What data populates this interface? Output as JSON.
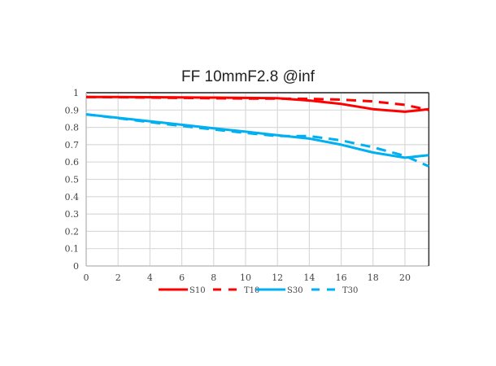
{
  "chart_data": {
    "type": "line",
    "title": "FF 10mmF2.8 @inf",
    "xlabel": "",
    "ylabel": "",
    "xlim": [
      0,
      21.5
    ],
    "ylim": [
      0,
      1
    ],
    "xticks": [
      0,
      2,
      4,
      6,
      8,
      10,
      12,
      14,
      16,
      18,
      20
    ],
    "yticks": [
      "0",
      "0.1",
      "0.2",
      "0.3",
      "0.4",
      "0.5",
      "0.6",
      "0.7",
      "0.8",
      "0.9",
      "1"
    ],
    "grid": true,
    "legend_position": "bottom",
    "x": [
      0,
      2,
      4,
      6,
      8,
      10,
      12,
      14,
      16,
      18,
      20,
      21.5
    ],
    "series": [
      {
        "name": "S10",
        "color": "#ff0000",
        "style": "solid",
        "values": [
          0.975,
          0.975,
          0.974,
          0.973,
          0.972,
          0.97,
          0.968,
          0.955,
          0.935,
          0.905,
          0.89,
          0.905
        ]
      },
      {
        "name": "T10",
        "color": "#ff0000",
        "style": "dashed",
        "values": [
          0.975,
          0.974,
          0.972,
          0.97,
          0.968,
          0.966,
          0.966,
          0.965,
          0.96,
          0.95,
          0.93,
          0.9
        ]
      },
      {
        "name": "S30",
        "color": "#00b0f0",
        "style": "solid",
        "values": [
          0.875,
          0.855,
          0.835,
          0.815,
          0.795,
          0.775,
          0.755,
          0.735,
          0.7,
          0.655,
          0.625,
          0.64
        ]
      },
      {
        "name": "T30",
        "color": "#00b0f0",
        "style": "dashed",
        "values": [
          0.875,
          0.853,
          0.83,
          0.808,
          0.788,
          0.768,
          0.75,
          0.75,
          0.725,
          0.685,
          0.635,
          0.575
        ]
      }
    ]
  }
}
